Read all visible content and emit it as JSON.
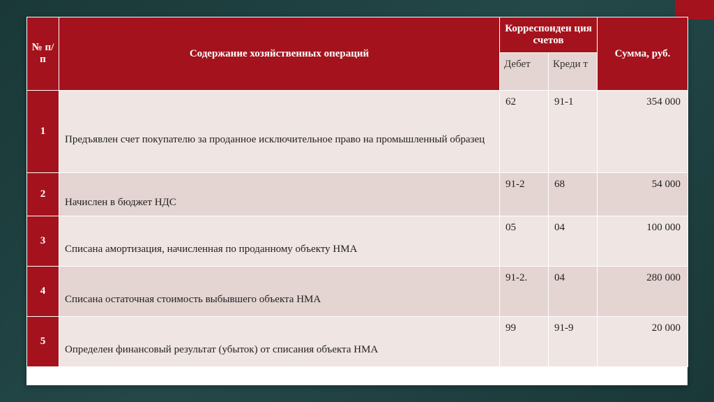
{
  "table": {
    "header": {
      "num": "№ п/п",
      "desc": "Содержание хозяйственных операций",
      "corr": "Корреспонден ция счетов",
      "debit": "Дебет",
      "credit": "Креди т",
      "sum": "Сумма, руб."
    },
    "rows": [
      {
        "n": "1",
        "desc": "Предъявлен счет покупателю за проданное исключительное право на промышленный образец",
        "debit": "62",
        "credit": "91-1",
        "sum": "354 000",
        "cls": "odd row-tall"
      },
      {
        "n": "2",
        "desc": "Начислен в бюджет НДС",
        "debit": "91-2",
        "credit": "68",
        "sum": "54 000",
        "cls": "even row-short"
      },
      {
        "n": "3",
        "desc": "Списана амортизация, начисленная по проданному объекту НМА",
        "debit": "05",
        "credit": "04",
        "sum": "100 000",
        "cls": "odd row-med"
      },
      {
        "n": "4",
        "desc": "Списана остаточная стоимость выбывшего объекта НМА",
        "debit": "91-2.",
        "credit": "04",
        "sum": "280 000",
        "cls": "even row-med"
      },
      {
        "n": "5",
        "desc": "Определен финансовый результат (убыток) от списания объекта НМА",
        "debit": "99",
        "credit": "91-9",
        "sum": "20 000",
        "cls": "odd row-med"
      }
    ],
    "colors": {
      "header_bg": "#a4131d",
      "header_fg": "#ffffff",
      "subhead_bg": "#e4d4d2",
      "row_odd_bg": "#efe5e3",
      "row_even_bg": "#e4d4d2",
      "border": "#ffffff",
      "page_bg": "#244848"
    },
    "typography": {
      "font_family": "Times New Roman",
      "cell_fontsize": 15
    }
  }
}
